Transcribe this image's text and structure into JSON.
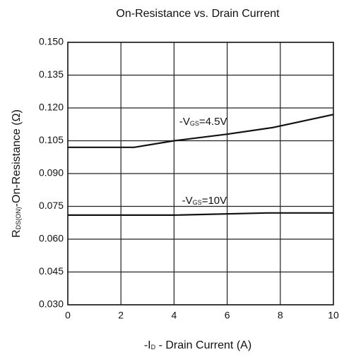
{
  "chart_data": {
    "type": "line",
    "title": "On-Resistance vs. Drain Current",
    "x_label_parts": [
      "-I",
      "D",
      " - Drain Current (A)"
    ],
    "y_label_parts": [
      "R",
      "DS(ON)",
      "-On-Resistance (Ω)"
    ],
    "xlim": [
      0,
      10
    ],
    "xticks": [
      0,
      2,
      4,
      6,
      8,
      10
    ],
    "ylim": [
      0.03,
      0.15
    ],
    "yticks": [
      {
        "value": 0.03,
        "label": "0.030"
      },
      {
        "value": 0.045,
        "label": "0.045"
      },
      {
        "value": 0.06,
        "label": "0.060"
      },
      {
        "value": 0.075,
        "label": "0.075"
      },
      {
        "value": 0.09,
        "label": "0.090"
      },
      {
        "value": 0.105,
        "label": "0.105"
      },
      {
        "value": 0.12,
        "label": "0.120"
      },
      {
        "value": 0.135,
        "label": "0.135"
      },
      {
        "value": 0.15,
        "label": "0.150"
      }
    ],
    "grid": true,
    "series": [
      {
        "label_parts": [
          "-V",
          "GS",
          "=4.5V"
        ],
        "color": "#111111",
        "x": [
          0,
          2.5,
          4,
          6,
          7.7,
          10
        ],
        "values": [
          0.102,
          0.102,
          0.105,
          0.108,
          0.111,
          0.117
        ]
      },
      {
        "label_parts": [
          "-V",
          "GS",
          "=10V"
        ],
        "color": "#111111",
        "x": [
          0,
          4,
          7.5,
          10
        ],
        "values": [
          0.071,
          0.071,
          0.072,
          0.072
        ]
      }
    ]
  }
}
